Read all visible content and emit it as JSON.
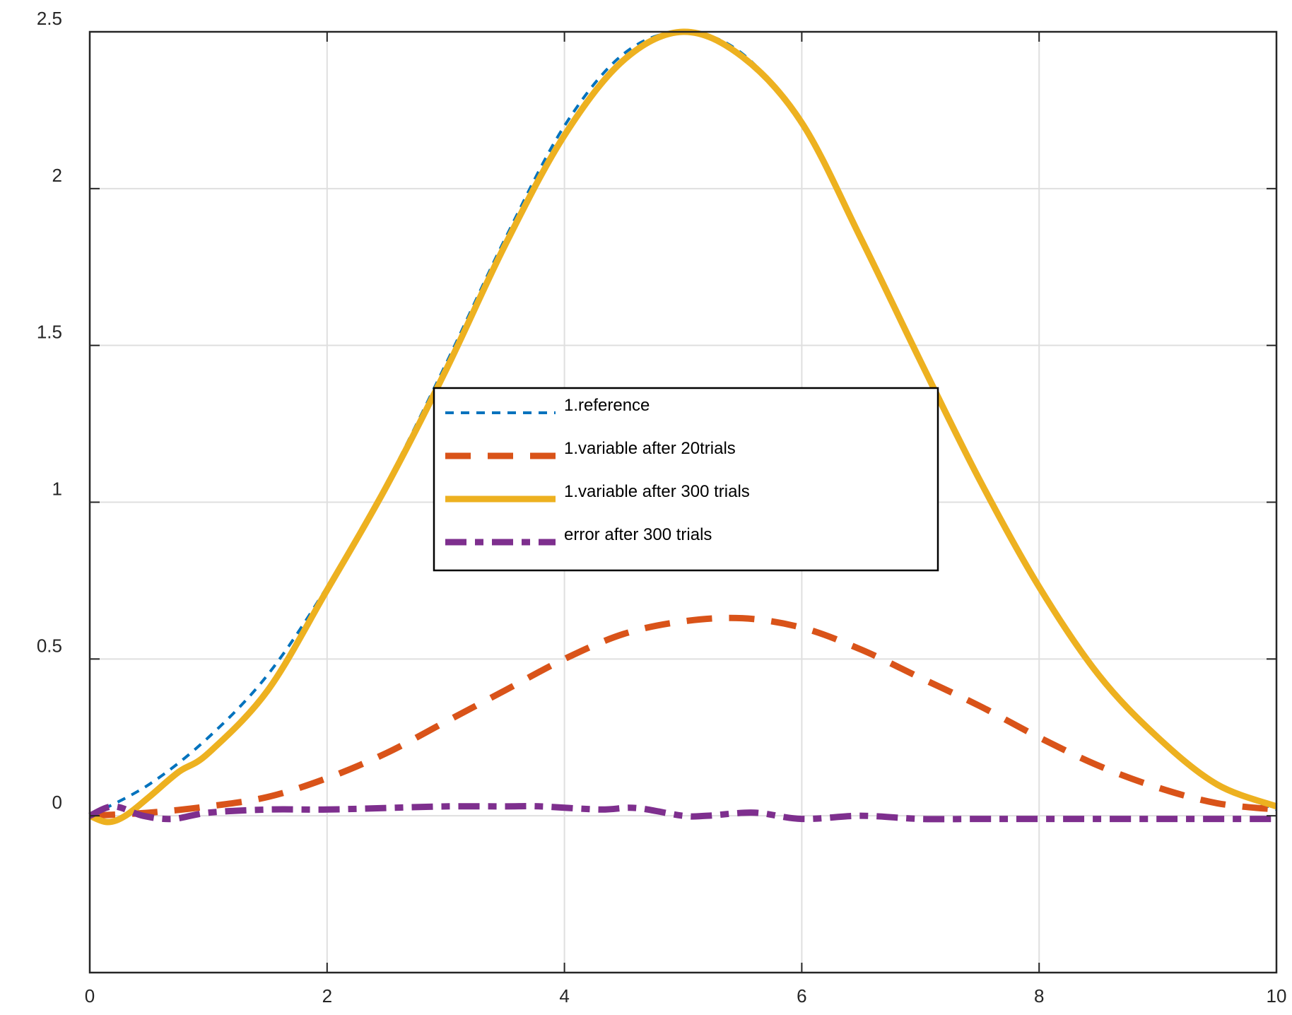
{
  "chart_data": {
    "type": "line",
    "title": "",
    "xlabel": "",
    "ylabel": "",
    "xlim": [
      0,
      10
    ],
    "ylim": [
      -0.5,
      2.5
    ],
    "grid": true,
    "legend_placement": "center",
    "x_ticks": [
      {
        "value": 0,
        "label": "0"
      },
      {
        "value": 2,
        "label": "2"
      },
      {
        "value": 4,
        "label": "4"
      },
      {
        "value": 6,
        "label": "6"
      },
      {
        "value": 8,
        "label": "8"
      },
      {
        "value": 10,
        "label": "10"
      }
    ],
    "y_ticks": [
      {
        "value": 0,
        "label": "0"
      },
      {
        "value": 0.5,
        "label": "0.5"
      },
      {
        "value": 1,
        "label": "1"
      },
      {
        "value": 1.5,
        "label": "1.5"
      },
      {
        "value": 2,
        "label": "2"
      },
      {
        "value": 2.5,
        "label": "2.5"
      }
    ],
    "series": [
      {
        "name": "1.reference",
        "color": "#0072BD",
        "style": "dotted",
        "x": [
          0,
          0.5,
          1,
          1.5,
          2,
          2.5,
          3,
          3.5,
          4,
          4.5,
          5,
          5.5,
          6,
          6.5,
          7,
          7.5,
          8,
          8.5,
          9,
          9.5,
          10
        ],
        "y": [
          0,
          0.1,
          0.25,
          0.45,
          0.73,
          1.06,
          1.44,
          1.84,
          2.2,
          2.43,
          2.5,
          2.43,
          2.2,
          1.84,
          1.44,
          1.06,
          0.73,
          0.45,
          0.25,
          0.1,
          0.02
        ]
      },
      {
        "name": "1.variable after 20trials",
        "color": "#D95319",
        "style": "dashed",
        "x": [
          0,
          0.5,
          1,
          1.5,
          2,
          2.5,
          3,
          3.5,
          4,
          4.5,
          5,
          5.5,
          6,
          6.5,
          7,
          7.5,
          8,
          8.5,
          9,
          9.5,
          10
        ],
        "y": [
          0,
          0.01,
          0.03,
          0.06,
          0.12,
          0.2,
          0.3,
          0.4,
          0.5,
          0.58,
          0.62,
          0.63,
          0.6,
          0.53,
          0.44,
          0.35,
          0.25,
          0.16,
          0.09,
          0.04,
          0.02
        ]
      },
      {
        "name": "1.variable after 300 trials",
        "color": "#EDB120",
        "style": "solid",
        "x": [
          0,
          0.15,
          0.3,
          0.5,
          0.75,
          1,
          1.5,
          2,
          2.5,
          3,
          3.5,
          4,
          4.5,
          5,
          5.5,
          6,
          6.5,
          7,
          7.5,
          8,
          8.5,
          9,
          9.5,
          10
        ],
        "y": [
          0,
          -0.02,
          0.0,
          0.06,
          0.14,
          0.2,
          0.4,
          0.72,
          1.05,
          1.42,
          1.82,
          2.17,
          2.41,
          2.5,
          2.42,
          2.21,
          1.84,
          1.45,
          1.07,
          0.73,
          0.45,
          0.25,
          0.1,
          0.03
        ]
      },
      {
        "name": "error after 300 trials",
        "color": "#7E2F8E",
        "style": "dash-dot",
        "x": [
          0,
          0.2,
          0.45,
          0.7,
          1,
          1.5,
          2,
          2.5,
          3,
          3.5,
          3.8,
          4.3,
          4.6,
          5,
          5.2,
          5.6,
          6,
          6.5,
          7,
          7.5,
          8,
          9,
          10
        ],
        "y": [
          0,
          0.03,
          0.0,
          -0.01,
          0.01,
          0.02,
          0.02,
          0.025,
          0.03,
          0.03,
          0.03,
          0.02,
          0.025,
          0.0,
          0.0,
          0.01,
          -0.01,
          0.0,
          -0.01,
          -0.01,
          -0.01,
          -0.01,
          -0.01
        ]
      }
    ]
  }
}
